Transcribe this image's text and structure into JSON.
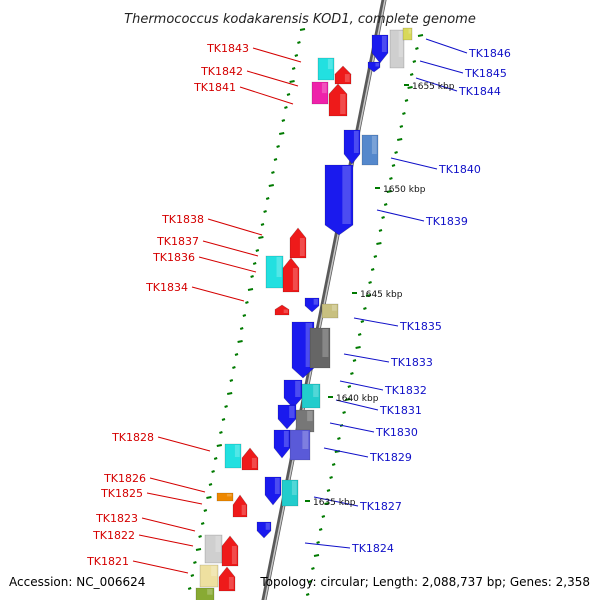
{
  "title": "Thermococcus kodakarensis KOD1, complete genome",
  "footer": {
    "accession": "Accession: NC_006624",
    "summary": "Topology: circular; Length: 2,088,737 bp; Genes: 2,358"
  },
  "colors": {
    "forward_label": "#d40000",
    "reverse_label": "#1010c8",
    "backbone": "#8a8a8a",
    "tick": "#007a00"
  },
  "scale_ticks": [
    "1655 kbp",
    "1650 kbp",
    "1645 kbp",
    "1640 kbp",
    "1635 kbp"
  ],
  "left_labels": [
    "TK1843",
    "TK1842",
    "TK1841",
    "TK1838",
    "TK1837",
    "TK1836",
    "TK1834",
    "TK1828",
    "TK1826",
    "TK1825",
    "TK1823",
    "TK1822",
    "TK1821"
  ],
  "right_labels": [
    "TK1846",
    "TK1845",
    "TK1844",
    "TK1840",
    "TK1839",
    "TK1835",
    "TK1833",
    "TK1832",
    "TK1831",
    "TK1830",
    "TK1829",
    "TK1827",
    "TK1824"
  ]
}
